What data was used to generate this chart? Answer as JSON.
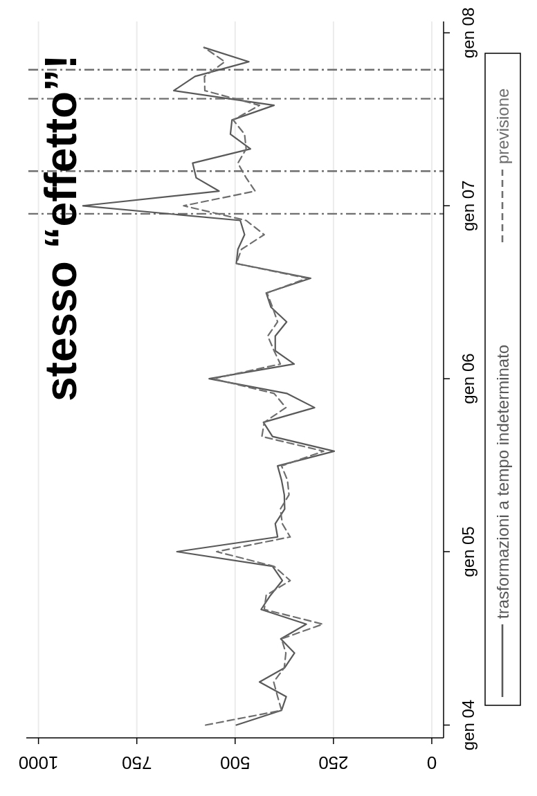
{
  "chart_data": {
    "type": "line",
    "orientation": "horizontal",
    "x": [
      "2004-01",
      "2004-02",
      "2004-03",
      "2004-04",
      "2004-05",
      "2004-06",
      "2004-07",
      "2004-08",
      "2004-09",
      "2004-10",
      "2004-11",
      "2004-12",
      "2005-01",
      "2005-02",
      "2005-03",
      "2005-04",
      "2005-05",
      "2005-06",
      "2005-07",
      "2005-08",
      "2005-09",
      "2005-10",
      "2005-11",
      "2005-12",
      "2006-01",
      "2006-02",
      "2006-03",
      "2006-04",
      "2006-05",
      "2006-06",
      "2006-07",
      "2006-08",
      "2006-09",
      "2006-10",
      "2006-11",
      "2006-12",
      "2007-01",
      "2007-02",
      "2007-03",
      "2007-04",
      "2007-05",
      "2007-06",
      "2007-07",
      "2007-08",
      "2007-09",
      "2007-10",
      "2007-11",
      "2007-12"
    ],
    "series": [
      {
        "name": "trasformazioni a tempo indeterminato",
        "color": "#595959",
        "line_style": "solid",
        "values": [
          497,
          382,
          370,
          438,
          374,
          349,
          384,
          319,
          434,
          410,
          380,
          405,
          648,
          392,
          398,
          374,
          375,
          382,
          392,
          248,
          405,
          428,
          298,
          369,
          566,
          350,
          398,
          398,
          369,
          409,
          421,
          308,
          497,
          493,
          476,
          487,
          887,
          541,
          599,
          608,
          461,
          512,
          508,
          401,
          656,
          602,
          465,
          579
        ]
      },
      {
        "name": "previsione",
        "color": "#6e6e6e",
        "line_style": "dashed",
        "values": [
          575,
          382,
          392,
          402,
          375,
          371,
          382,
          277,
          426,
          421,
          360,
          401,
          547,
          360,
          380,
          385,
          363,
          367,
          382,
          275,
          432,
          426,
          371,
          401,
          556,
          385,
          401,
          417,
          392,
          405,
          419,
          317,
          497,
          484,
          426,
          472,
          631,
          449,
          472,
          493,
          472,
          476,
          505,
          438,
          577,
          578,
          526,
          579
        ]
      }
    ],
    "ylim": [
      "2003-12-05",
      "2008-01-25"
    ],
    "yticks": [
      {
        "value": "2004-01",
        "label": "gen 04"
      },
      {
        "value": "2005-01",
        "label": "gen 05"
      },
      {
        "value": "2006-01",
        "label": "gen 06"
      },
      {
        "value": "2007-01",
        "label": "gen 07"
      },
      {
        "value": "2008-01",
        "label": "gen 08"
      }
    ],
    "xlim": [
      1031,
      -30
    ],
    "xticks": [
      0,
      250,
      500,
      750,
      1000
    ],
    "grid": "x",
    "legend": "right",
    "ref_lines": [
      {
        "axis": "y",
        "value": "2006-12-15",
        "color": "#6e6e6e",
        "line_style": "dashed"
      },
      {
        "axis": "y",
        "value": "2007-03-15",
        "color": "#6e6e6e",
        "line_style": "dashed"
      },
      {
        "axis": "y",
        "value": "2007-08-15",
        "color": "#6e6e6e",
        "line_style": "dashed"
      },
      {
        "axis": "y",
        "value": "2007-10-15",
        "color": "#6e6e6e",
        "line_style": "dashed"
      }
    ],
    "annotations": [
      "stesso “effetto”!"
    ]
  }
}
